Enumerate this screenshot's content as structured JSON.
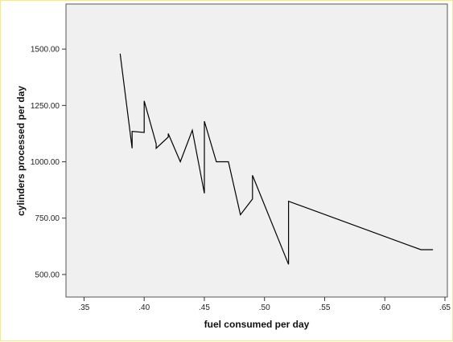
{
  "chart_data": {
    "type": "line",
    "title": "",
    "xlabel": "fuel consumed per day",
    "ylabel": "cylinders processed per day",
    "xlim": [
      0.335,
      0.652
    ],
    "ylim": [
      400,
      1700
    ],
    "x_ticks": [
      ".35",
      ".40",
      ".45",
      ".50",
      ".55",
      ".60",
      ".65"
    ],
    "x_tick_values": [
      0.35,
      0.4,
      0.45,
      0.5,
      0.55,
      0.6,
      0.65
    ],
    "y_ticks": [
      "500.00",
      "750.00",
      "1000.00",
      "1250.00",
      "1500.00"
    ],
    "y_tick_values": [
      500,
      750,
      1000,
      1250,
      1500
    ],
    "grid": false,
    "plot_background": "#f0f0f0",
    "line_color": "#000000",
    "series": [
      {
        "x": [
          0.38,
          0.39,
          0.39,
          0.4,
          0.4,
          0.41,
          0.41,
          0.42,
          0.42,
          0.43,
          0.44,
          0.45,
          0.45,
          0.46,
          0.47,
          0.48,
          0.49,
          0.49,
          0.52,
          0.52,
          0.63,
          0.64
        ],
        "y": [
          1480,
          1060,
          1135,
          1130,
          1270,
          1080,
          1060,
          1110,
          1125,
          1000,
          1140,
          860,
          1180,
          1000,
          1000,
          765,
          835,
          940,
          545,
          825,
          610,
          610
        ]
      }
    ]
  }
}
